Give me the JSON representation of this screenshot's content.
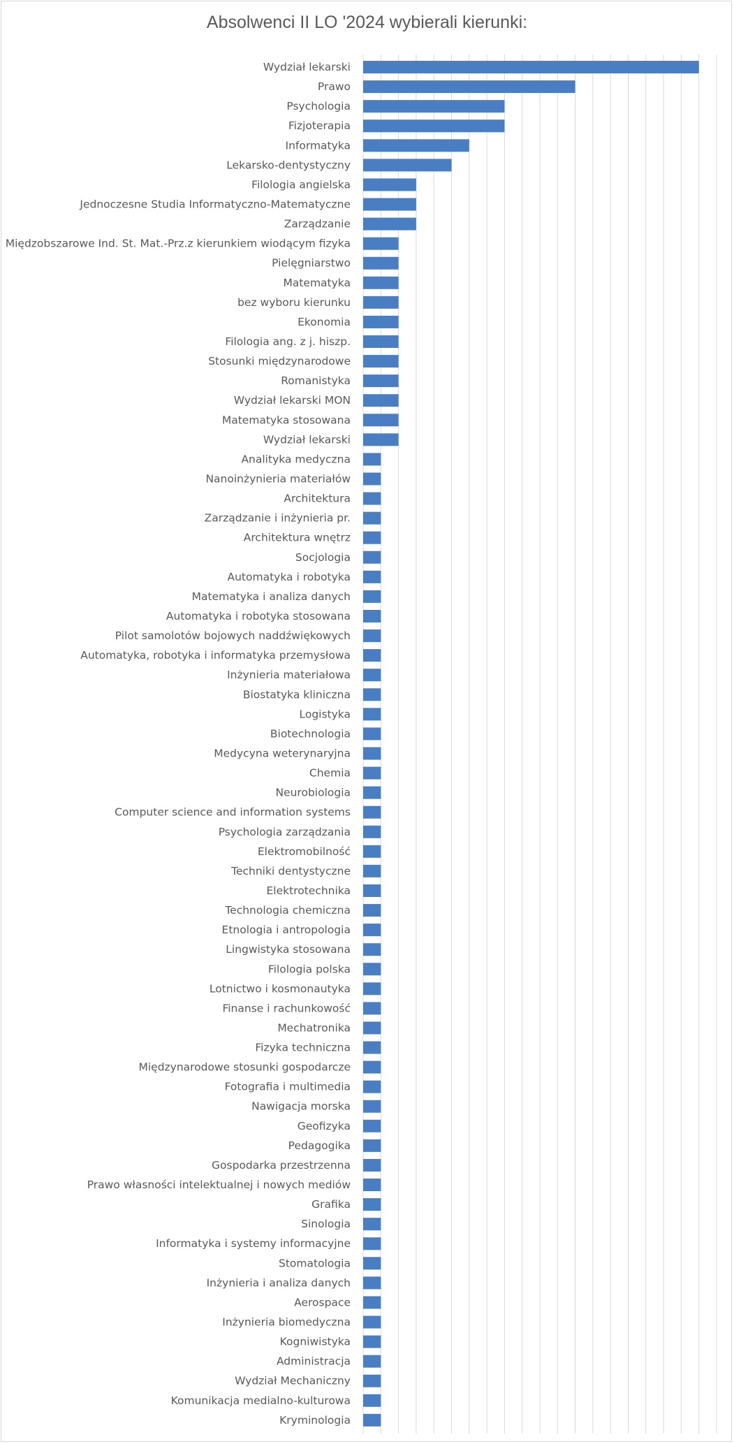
{
  "chart_data": {
    "type": "bar",
    "orientation": "horizontal",
    "title": "Absolwenci II LO '2024 wybierali kierunki:",
    "xlabel": "",
    "ylabel": "",
    "grid": true,
    "legend": "none",
    "xlim": [
      0,
      20
    ],
    "bar_color": "#4a7ec2",
    "categories": [
      "Wydział lekarski",
      "Prawo",
      "Psychologia",
      "Fizjoterapia",
      "Informatyka",
      "Lekarsko-dentystyczny",
      "Filologia angielska",
      "Jednoczesne Studia Informatyczno-Matematyczne",
      "Zarządzanie",
      "Międzobszarowe Ind. St. Mat.-Prz.z kierunkiem wiodącym fizyka",
      "Pielęgniarstwo",
      "Matematyka",
      "bez wyboru kierunku",
      "Ekonomia",
      "Filologia ang. z j. hiszp.",
      "Stosunki międzynarodowe",
      "Romanistyka",
      "Wydział lekarski MON",
      "Matematyka stosowana",
      "Wydział lekarski",
      "Analityka medyczna",
      "Nanoinżynieria materiałów",
      "Architektura",
      "Zarządzanie i inżynieria pr.",
      "Architektura wnętrz",
      "Socjologia",
      "Automatyka i robotyka",
      "Matematyka i analiza danych",
      "Automatyka i robotyka stosowana",
      "Pilot samolotów bojowych naddźwiękowych",
      "Automatyka, robotyka i informatyka przemysłowa",
      "Inżynieria materiałowa",
      "Biostatyka kliniczna",
      "Logistyka",
      "Biotechnologia",
      "Medycyna weterynaryjna",
      "Chemia",
      "Neurobiologia",
      "Computer science and information systems",
      "Psychologia zarządzania",
      "Elektromobilność",
      "Techniki dentystyczne",
      "Elektrotechnika",
      "Technologia chemiczna",
      "Etnologia i antropologia",
      "Lingwistyka stosowana",
      "Filologia polska",
      "Lotnictwo i kosmonautyka",
      "Finanse i rachunkowość",
      "Mechatronika",
      "Fizyka techniczna",
      "Międzynarodowe stosunki gospodarcze",
      "Fotografia i multimedia",
      "Nawigacja morska",
      "Geofizyka",
      "Pedagogika",
      "Gospodarka przestrzenna",
      "Prawo własności intelektualnej i nowych mediów",
      "Grafika",
      "Sinologia",
      "Informatyka i systemy informacyjne",
      "Stomatologia",
      "Inżynieria  i analiza danych",
      "Aerospace",
      "Inżynieria biomedyczna",
      "Kogniwistyka",
      "Administracja",
      "Wydział Mechaniczny",
      "Komunikacja medialno-kulturowa",
      "Kryminologia"
    ],
    "values": [
      19,
      12,
      8,
      8,
      6,
      5,
      3,
      3,
      3,
      2,
      2,
      2,
      2,
      2,
      2,
      2,
      2,
      2,
      2,
      2,
      1,
      1,
      1,
      1,
      1,
      1,
      1,
      1,
      1,
      1,
      1,
      1,
      1,
      1,
      1,
      1,
      1,
      1,
      1,
      1,
      1,
      1,
      1,
      1,
      1,
      1,
      1,
      1,
      1,
      1,
      1,
      1,
      1,
      1,
      1,
      1,
      1,
      1,
      1,
      1,
      1,
      1,
      1,
      1,
      1,
      1,
      1,
      1,
      1,
      1
    ]
  }
}
